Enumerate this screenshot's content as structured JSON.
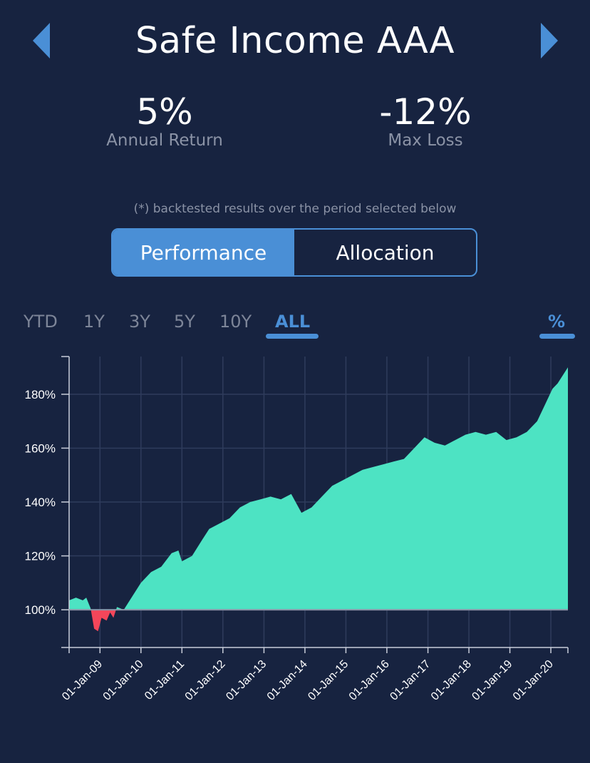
{
  "header": {
    "title": "Safe Income AAA"
  },
  "stats": {
    "annual_return": {
      "value": "5%",
      "label": "Annual Return"
    },
    "max_loss": {
      "value": "-12%",
      "label": "Max Loss"
    }
  },
  "note": "(*) backtested results over the period selected below",
  "tabs": {
    "performance": "Performance",
    "allocation": "Allocation",
    "active": "performance"
  },
  "periods": {
    "ytd": "YTD",
    "y1": "1Y",
    "y3": "3Y",
    "y5": "5Y",
    "y10": "10Y",
    "all": "ALL",
    "active": "all"
  },
  "unit_toggle": "%",
  "colors": {
    "background": "#172340",
    "accent": "#4a8fd6",
    "gain": "#4de3c3",
    "loss": "#f4465a",
    "muted": "#8b93a6"
  },
  "chart_data": {
    "type": "area",
    "title": "",
    "xlabel": "",
    "ylabel": "",
    "baseline": 100,
    "ylim": [
      86,
      194
    ],
    "xlim": [
      "2008-04-01",
      "2020-06-01"
    ],
    "grid": true,
    "y_ticks": [
      100,
      120,
      140,
      160,
      180
    ],
    "y_tick_labels": [
      "100%",
      "120%",
      "140%",
      "160%",
      "180%"
    ],
    "x_ticks": [
      "2009-01-01",
      "2010-01-01",
      "2011-01-01",
      "2012-01-01",
      "2013-01-01",
      "2014-01-01",
      "2015-01-01",
      "2016-01-01",
      "2017-01-01",
      "2018-01-01",
      "2019-01-01",
      "2020-01-01"
    ],
    "x_tick_labels": [
      "01-Jan-09",
      "01-Jan-10",
      "01-Jan-11",
      "01-Jan-12",
      "01-Jan-13",
      "01-Jan-14",
      "01-Jan-15",
      "01-Jan-16",
      "01-Jan-17",
      "01-Jan-18",
      "01-Jan-19",
      "01-Jan-20"
    ],
    "series": [
      {
        "x": [
          "2008-04-01",
          "2008-06-01",
          "2008-08-01",
          "2008-09-01",
          "2008-10-10",
          "2008-11-10",
          "2008-12-15",
          "2009-01-15",
          "2009-03-01",
          "2009-04-01",
          "2009-05-01",
          "2009-06-01",
          "2009-08-01",
          "2009-10-01",
          "2010-01-01",
          "2010-04-01",
          "2010-07-01",
          "2010-10-01",
          "2010-12-01",
          "2011-01-01",
          "2011-04-01",
          "2011-07-01",
          "2011-09-01",
          "2011-12-01",
          "2012-03-01",
          "2012-06-01",
          "2012-09-01",
          "2012-12-01",
          "2013-03-01",
          "2013-06-01",
          "2013-09-01",
          "2013-12-01",
          "2014-03-01",
          "2014-06-01",
          "2014-09-01",
          "2014-12-01",
          "2015-03-01",
          "2015-06-01",
          "2015-09-01",
          "2015-12-01",
          "2016-03-01",
          "2016-06-01",
          "2016-09-01",
          "2016-12-01",
          "2017-03-01",
          "2017-06-01",
          "2017-09-01",
          "2017-12-01",
          "2018-03-01",
          "2018-06-01",
          "2018-09-01",
          "2018-12-01",
          "2019-03-01",
          "2019-06-01",
          "2019-09-01",
          "2019-12-01",
          "2020-01-15",
          "2020-03-01",
          "2020-06-01"
        ],
        "values": [
          103.5,
          104.5,
          103.5,
          104.5,
          100.5,
          93,
          92,
          97,
          96,
          99,
          97,
          101,
          100,
          104,
          110,
          114,
          116,
          121,
          122,
          118,
          120,
          126,
          130,
          132,
          134,
          138,
          140,
          141,
          142,
          141,
          143,
          136,
          138,
          142,
          146,
          148,
          150,
          152,
          153,
          154,
          155,
          156,
          160,
          164,
          162,
          161,
          163,
          165,
          166,
          165,
          166,
          163,
          164,
          166,
          170,
          178,
          182,
          184,
          190
        ]
      }
    ]
  }
}
